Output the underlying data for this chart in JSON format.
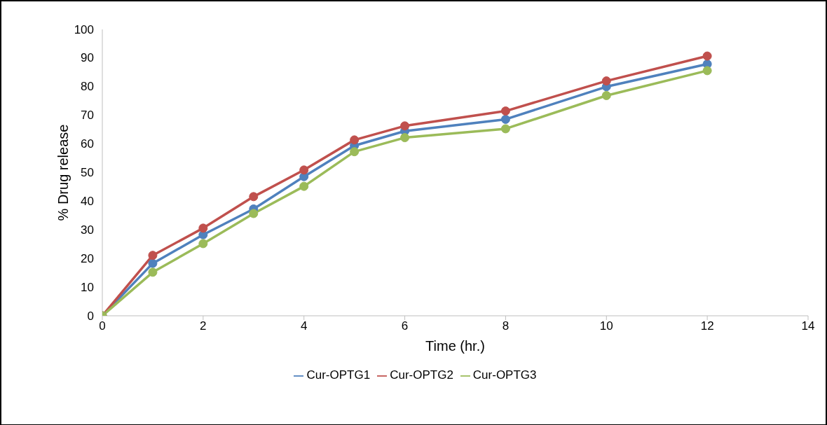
{
  "chart_data": {
    "type": "line",
    "xlabel": "Time (hr.)",
    "ylabel": "% Drug release",
    "x": [
      0,
      1,
      2,
      3,
      4,
      5,
      6,
      8,
      10,
      12
    ],
    "series": [
      {
        "name": "Cur-OPTG1",
        "color": "#4f81bd",
        "values": [
          0,
          18.3,
          28.3,
          37.3,
          48.6,
          59.4,
          64.5,
          68.6,
          80,
          87.9
        ]
      },
      {
        "name": "Cur-OPTG2",
        "color": "#c0504d",
        "values": [
          0,
          21.1,
          30.6,
          41.6,
          50.9,
          61.4,
          66.3,
          71.5,
          82,
          90.7
        ]
      },
      {
        "name": "Cur-OPTG3",
        "color": "#9bbb59",
        "values": [
          0,
          15.2,
          25.2,
          35.7,
          45.2,
          57.3,
          62.2,
          65.3,
          76.9,
          85.6
        ]
      }
    ],
    "xlim": [
      0,
      14
    ],
    "xticks": [
      0,
      2,
      4,
      6,
      8,
      10,
      12,
      14
    ],
    "ylim": [
      0,
      100
    ],
    "yticks": [
      0,
      10,
      20,
      30,
      40,
      50,
      60,
      70,
      80,
      90,
      100
    ],
    "grid": false,
    "legend": "bottom",
    "marker": "circle",
    "line_style": "solid"
  }
}
